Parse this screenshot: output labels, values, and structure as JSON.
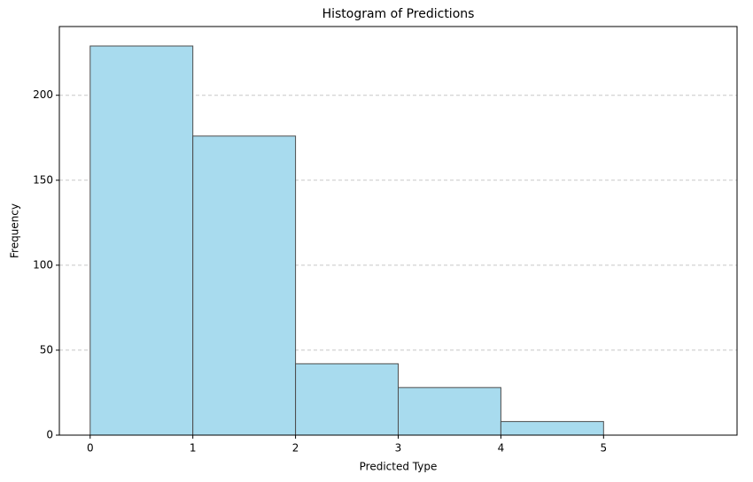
{
  "chart_data": {
    "type": "histogram",
    "title": "Histogram of Predictions",
    "x_label": "Predicted Type",
    "y_label": "Frequency",
    "bins": [
      0,
      1,
      2,
      3,
      4,
      5,
      6
    ],
    "counts": [
      229,
      176,
      42,
      28,
      8,
      0
    ],
    "color": "#a8dbee",
    "edgecolor": "#4d4d4d",
    "xlim": [
      -0.3,
      6.3
    ],
    "ylim": [
      0,
      240.45
    ],
    "xticks": [
      0,
      1,
      2,
      3,
      4,
      5
    ],
    "yticks": [
      0,
      50,
      100,
      150,
      200
    ],
    "grid": "y"
  }
}
